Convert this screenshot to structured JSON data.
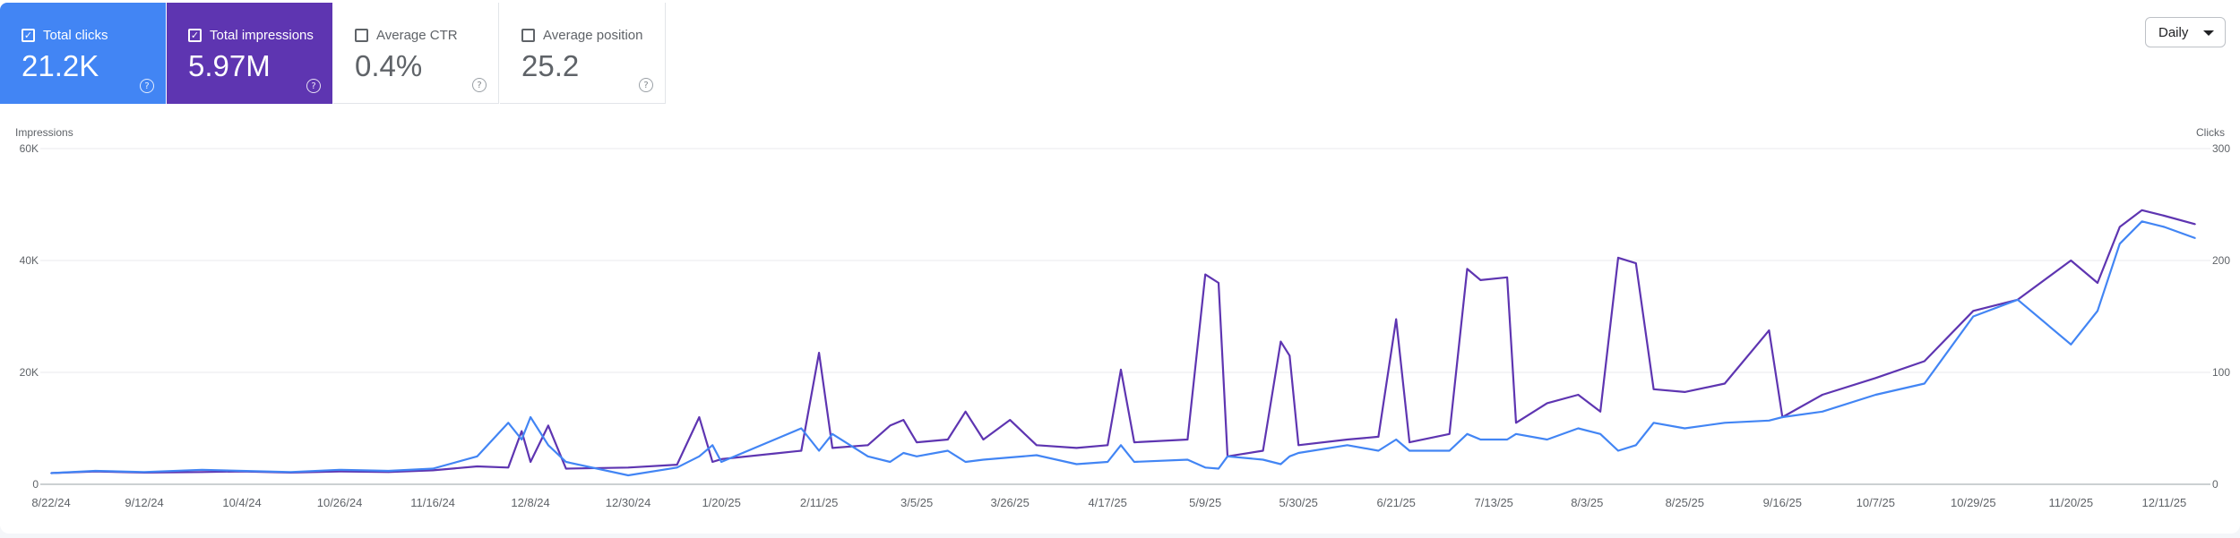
{
  "metrics": [
    {
      "label": "Total clicks",
      "value": "21.2K",
      "checked": true,
      "color": "#4285f4"
    },
    {
      "label": "Total impressions",
      "value": "5.97M",
      "checked": true,
      "color": "#5e35b1"
    },
    {
      "label": "Average CTR",
      "value": "0.4%",
      "checked": false,
      "color": "#ffffff"
    },
    {
      "label": "Average position",
      "value": "25.2",
      "checked": false,
      "color": "#ffffff"
    }
  ],
  "help_glyph": "?",
  "check_glyph": "✓",
  "period": {
    "label": "Daily"
  },
  "chart_data": {
    "type": "line",
    "left_axis": {
      "label": "Impressions",
      "range": [
        0,
        60000
      ],
      "ticks": [
        "0",
        "20K",
        "40K",
        "60K"
      ]
    },
    "right_axis": {
      "label": "Clicks",
      "range": [
        0,
        300
      ],
      "ticks": [
        "0",
        "100",
        "200",
        "300"
      ]
    },
    "x_ticks": [
      "8/22/24",
      "9/12/24",
      "10/4/24",
      "10/26/24",
      "11/16/24",
      "12/8/24",
      "12/30/24",
      "1/20/25",
      "2/11/25",
      "3/5/25",
      "3/26/25",
      "4/17/25",
      "5/9/25",
      "5/30/25",
      "6/21/25",
      "7/13/25",
      "8/3/25",
      "8/25/25",
      "9/16/25",
      "10/7/25",
      "10/29/25",
      "11/20/25",
      "12/11/25"
    ],
    "grid": true,
    "series": [
      {
        "name": "Total impressions",
        "axis": "left",
        "color": "#5e35b1",
        "points": [
          [
            "8/22/24",
            2000
          ],
          [
            "9/1/24",
            2300
          ],
          [
            "9/12/24",
            2100
          ],
          [
            "9/25/24",
            2200
          ],
          [
            "10/4/24",
            2300
          ],
          [
            "10/15/24",
            2100
          ],
          [
            "10/26/24",
            2300
          ],
          [
            "11/6/24",
            2200
          ],
          [
            "11/16/24",
            2500
          ],
          [
            "11/26/24",
            3200
          ],
          [
            "12/3/24",
            3000
          ],
          [
            "12/6/24",
            9500
          ],
          [
            "12/8/24",
            4000
          ],
          [
            "12/12/24",
            10500
          ],
          [
            "12/16/24",
            2800
          ],
          [
            "12/30/24",
            3000
          ],
          [
            "1/10/25",
            3500
          ],
          [
            "1/15/25",
            12000
          ],
          [
            "1/18/25",
            4000
          ],
          [
            "1/20/25",
            4500
          ],
          [
            "2/1/25",
            5500
          ],
          [
            "2/7/25",
            6000
          ],
          [
            "2/11/25",
            23500
          ],
          [
            "2/14/25",
            6500
          ],
          [
            "2/22/25",
            7000
          ],
          [
            "2/27/25",
            10500
          ],
          [
            "3/2/25",
            11500
          ],
          [
            "3/5/25",
            7500
          ],
          [
            "3/12/25",
            8000
          ],
          [
            "3/16/25",
            13000
          ],
          [
            "3/20/25",
            8000
          ],
          [
            "3/26/25",
            11500
          ],
          [
            "4/1/25",
            7000
          ],
          [
            "4/10/25",
            6500
          ],
          [
            "4/17/25",
            7000
          ],
          [
            "4/20/25",
            20500
          ],
          [
            "4/23/25",
            7500
          ],
          [
            "5/5/25",
            8000
          ],
          [
            "5/9/25",
            37500
          ],
          [
            "5/12/25",
            36000
          ],
          [
            "5/14/25",
            5000
          ],
          [
            "5/22/25",
            6000
          ],
          [
            "5/26/25",
            25500
          ],
          [
            "5/28/25",
            23000
          ],
          [
            "5/30/25",
            7000
          ],
          [
            "6/10/25",
            8000
          ],
          [
            "6/17/25",
            8500
          ],
          [
            "6/21/25",
            29500
          ],
          [
            "6/24/25",
            7500
          ],
          [
            "7/3/25",
            9000
          ],
          [
            "7/7/25",
            38500
          ],
          [
            "7/10/25",
            36500
          ],
          [
            "7/16/25",
            37000
          ],
          [
            "7/18/25",
            11000
          ],
          [
            "7/25/25",
            14500
          ],
          [
            "8/1/25",
            16000
          ],
          [
            "8/6/25",
            13000
          ],
          [
            "8/10/25",
            40500
          ],
          [
            "8/14/25",
            39500
          ],
          [
            "8/18/25",
            17000
          ],
          [
            "8/25/25",
            16500
          ],
          [
            "9/3/25",
            18000
          ],
          [
            "9/13/25",
            27500
          ],
          [
            "9/16/25",
            12000
          ],
          [
            "9/25/25",
            16000
          ],
          [
            "10/7/25",
            19000
          ],
          [
            "10/18/25",
            22000
          ],
          [
            "10/29/25",
            31000
          ],
          [
            "11/8/25",
            33000
          ],
          [
            "11/20/25",
            40000
          ],
          [
            "11/26/25",
            36000
          ],
          [
            "12/1/25",
            46000
          ],
          [
            "12/6/25",
            49000
          ],
          [
            "12/11/25",
            48000
          ],
          [
            "12/18/25",
            46500
          ]
        ]
      },
      {
        "name": "Total clicks",
        "axis": "right",
        "color": "#4285f4",
        "points": [
          [
            "8/22/24",
            10
          ],
          [
            "9/1/24",
            12
          ],
          [
            "9/12/24",
            11
          ],
          [
            "9/25/24",
            13
          ],
          [
            "10/4/24",
            12
          ],
          [
            "10/15/24",
            11
          ],
          [
            "10/26/24",
            13
          ],
          [
            "11/6/24",
            12
          ],
          [
            "11/16/24",
            14
          ],
          [
            "11/26/24",
            25
          ],
          [
            "12/3/24",
            55
          ],
          [
            "12/6/24",
            40
          ],
          [
            "12/8/24",
            60
          ],
          [
            "12/12/24",
            35
          ],
          [
            "12/16/24",
            20
          ],
          [
            "12/30/24",
            8
          ],
          [
            "1/10/25",
            15
          ],
          [
            "1/15/25",
            25
          ],
          [
            "1/18/25",
            35
          ],
          [
            "1/20/25",
            20
          ],
          [
            "2/1/25",
            40
          ],
          [
            "2/7/25",
            50
          ],
          [
            "2/11/25",
            30
          ],
          [
            "2/14/25",
            45
          ],
          [
            "2/22/25",
            25
          ],
          [
            "2/27/25",
            20
          ],
          [
            "3/2/25",
            28
          ],
          [
            "3/5/25",
            25
          ],
          [
            "3/12/25",
            30
          ],
          [
            "3/16/25",
            20
          ],
          [
            "3/20/25",
            22
          ],
          [
            "3/26/25",
            24
          ],
          [
            "4/1/25",
            26
          ],
          [
            "4/10/25",
            18
          ],
          [
            "4/17/25",
            20
          ],
          [
            "4/20/25",
            35
          ],
          [
            "4/23/25",
            20
          ],
          [
            "5/5/25",
            22
          ],
          [
            "5/9/25",
            15
          ],
          [
            "5/12/25",
            14
          ],
          [
            "5/14/25",
            25
          ],
          [
            "5/22/25",
            22
          ],
          [
            "5/26/25",
            18
          ],
          [
            "5/28/25",
            25
          ],
          [
            "5/30/25",
            28
          ],
          [
            "6/10/25",
            35
          ],
          [
            "6/17/25",
            30
          ],
          [
            "6/21/25",
            40
          ],
          [
            "6/24/25",
            30
          ],
          [
            "7/3/25",
            30
          ],
          [
            "7/7/25",
            45
          ],
          [
            "7/10/25",
            40
          ],
          [
            "7/16/25",
            40
          ],
          [
            "7/18/25",
            45
          ],
          [
            "7/25/25",
            40
          ],
          [
            "8/1/25",
            50
          ],
          [
            "8/6/25",
            45
          ],
          [
            "8/10/25",
            30
          ],
          [
            "8/14/25",
            35
          ],
          [
            "8/18/25",
            55
          ],
          [
            "8/25/25",
            50
          ],
          [
            "9/3/25",
            55
          ],
          [
            "9/13/25",
            57
          ],
          [
            "9/16/25",
            60
          ],
          [
            "9/25/25",
            65
          ],
          [
            "10/7/25",
            80
          ],
          [
            "10/18/25",
            90
          ],
          [
            "10/29/25",
            150
          ],
          [
            "11/8/25",
            165
          ],
          [
            "11/20/25",
            125
          ],
          [
            "11/26/25",
            155
          ],
          [
            "12/1/25",
            215
          ],
          [
            "12/6/25",
            235
          ],
          [
            "12/11/25",
            230
          ],
          [
            "12/18/25",
            220
          ]
        ]
      }
    ]
  }
}
